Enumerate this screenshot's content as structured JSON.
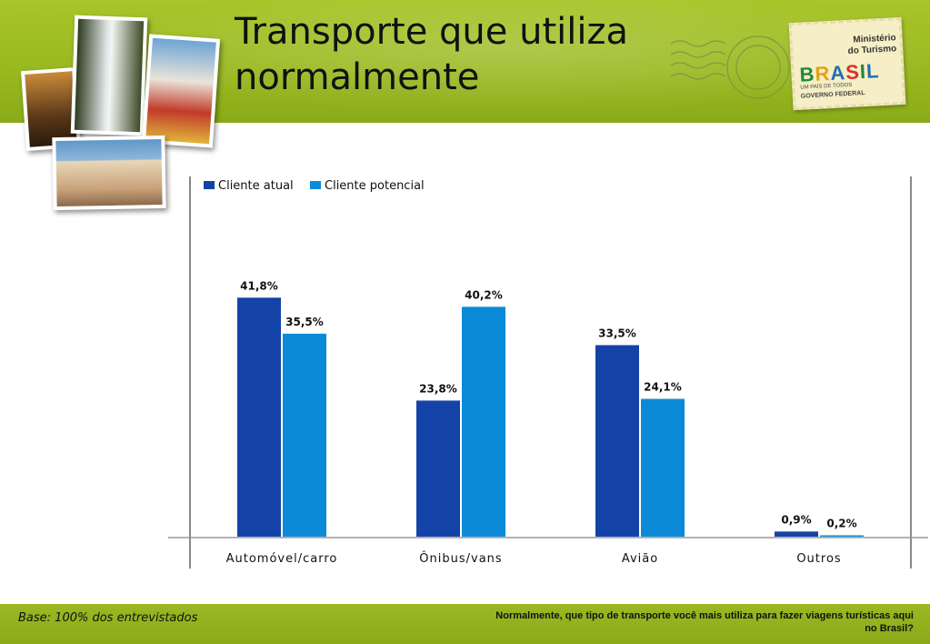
{
  "slide": {
    "title": "Transporte que utiliza normalmente",
    "base_note": "Base: 100% dos entrevistados",
    "question": "Normalmente, que tipo de transporte você mais utiliza para fazer viagens turísticas aqui no Brasil?"
  },
  "stamp": {
    "ministry": "Ministério\ndo Turismo",
    "logo": "BRASIL",
    "tagline": "UM PAÍS DE TODOS",
    "gov": "GOVERNO FEDERAL"
  },
  "colors": {
    "series_current": "#1443a8",
    "series_potential": "#0b8ad8",
    "header_green": "#9ab823"
  },
  "chart_data": {
    "type": "bar",
    "categories": [
      "Automóvel/carro",
      "Ônibus/vans",
      "Avião",
      "Outros"
    ],
    "series": [
      {
        "name": "Cliente atual",
        "values": [
          41.8,
          23.8,
          33.5,
          0.9
        ],
        "labels": [
          "41,8%",
          "23,8%",
          "33,5%",
          "0,9%"
        ]
      },
      {
        "name": "Cliente potencial",
        "values": [
          35.5,
          40.2,
          24.1,
          0.2
        ],
        "labels": [
          "35,5%",
          "40,2%",
          "24,1%",
          "0,2%"
        ]
      }
    ],
    "ylim": [
      0,
      70
    ],
    "legend": "top-left",
    "grid": false,
    "title": "",
    "xlabel": "",
    "ylabel": ""
  }
}
